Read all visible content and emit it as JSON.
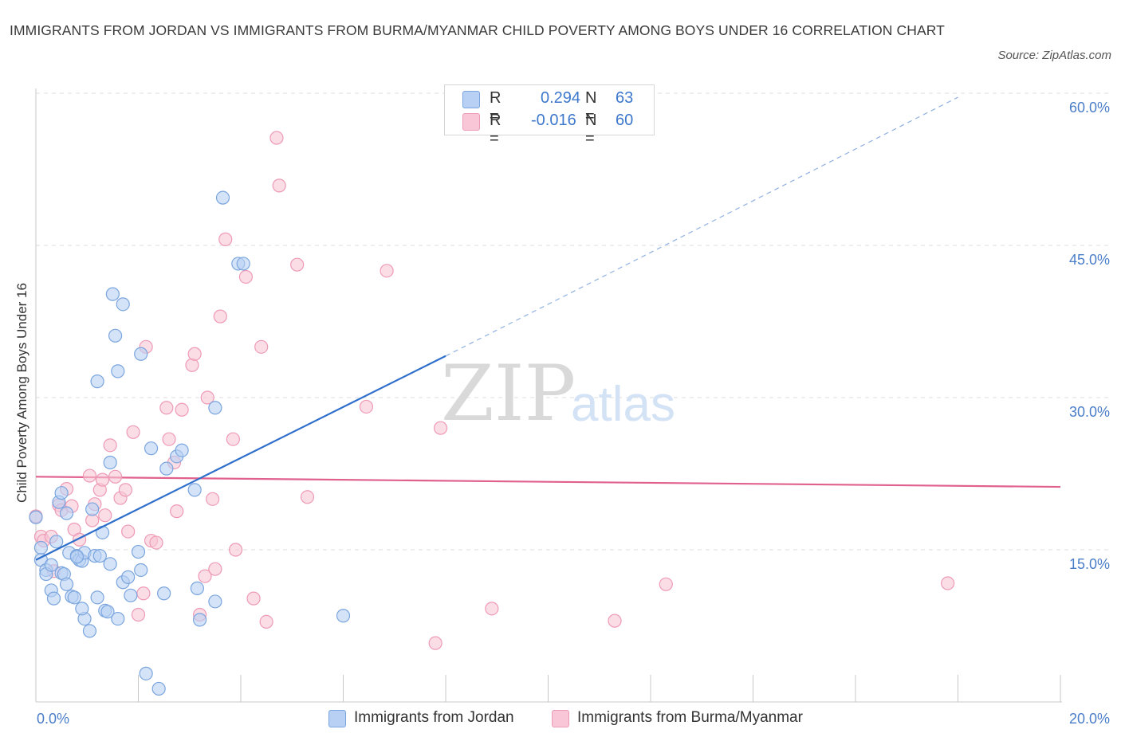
{
  "header": {
    "title": "IMMIGRANTS FROM JORDAN VS IMMIGRANTS FROM BURMA/MYANMAR CHILD POVERTY AMONG BOYS UNDER 16 CORRELATION CHART",
    "source": "Source: ZipAtlas.com"
  },
  "watermark": {
    "zip": "ZIP",
    "atlas": "atlas"
  },
  "colors": {
    "jordan_fill": "#b7d0f3",
    "jordan_stroke": "#7aa5de",
    "jordan_line": "#2f6fcc",
    "burma_fill": "#f8c6d6",
    "burma_stroke": "#ee9ab7",
    "burma_line": "#e0608e",
    "grid": "#dcdcdc",
    "tick_text": "#4a7ec9"
  },
  "legend": {
    "rows": [
      {
        "r_label": "R =",
        "r_value": "0.294",
        "n_label": "N =",
        "n_value": "63"
      },
      {
        "r_label": "R =",
        "r_value": "-0.016",
        "n_label": "N =",
        "n_value": "60"
      }
    ]
  },
  "bottom_legend": {
    "jordan": "Immigrants from Jordan",
    "burma": "Immigrants from Burma/Myanmar"
  },
  "chart_data": {
    "type": "scatter",
    "title": "IMMIGRANTS FROM JORDAN VS IMMIGRANTS FROM BURMA/MYANMAR CHILD POVERTY AMONG BOYS UNDER 16 CORRELATION CHART",
    "xlabel": "",
    "ylabel": "Child Poverty Among Boys Under 16",
    "xlim": [
      0,
      20
    ],
    "ylim": [
      0,
      60
    ],
    "x_tick_labels": [
      "0.0%",
      "20.0%"
    ],
    "y_ticks": [
      15,
      30,
      45,
      60
    ],
    "y_tick_labels": [
      "15.0%",
      "30.0%",
      "45.0%",
      "60.0%"
    ],
    "grid": true,
    "legend_position": "top-center",
    "series": [
      {
        "name": "Immigrants from Jordan",
        "points": [
          [
            0.0,
            18.2
          ],
          [
            0.1,
            15.2
          ],
          [
            0.1,
            14.0
          ],
          [
            0.2,
            13.0
          ],
          [
            0.2,
            12.6
          ],
          [
            0.3,
            13.5
          ],
          [
            0.3,
            11.0
          ],
          [
            0.35,
            10.2
          ],
          [
            0.4,
            15.8
          ],
          [
            0.45,
            19.7
          ],
          [
            0.5,
            20.6
          ],
          [
            0.5,
            12.7
          ],
          [
            0.55,
            12.6
          ],
          [
            0.6,
            18.6
          ],
          [
            0.6,
            11.6
          ],
          [
            0.65,
            14.7
          ],
          [
            0.7,
            10.4
          ],
          [
            0.75,
            10.3
          ],
          [
            0.8,
            14.4
          ],
          [
            0.85,
            14.0
          ],
          [
            0.9,
            13.9
          ],
          [
            0.95,
            14.7
          ],
          [
            0.95,
            8.2
          ],
          [
            1.05,
            7.0
          ],
          [
            1.1,
            19.0
          ],
          [
            1.15,
            14.4
          ],
          [
            1.2,
            10.3
          ],
          [
            1.3,
            16.7
          ],
          [
            1.35,
            9.0
          ],
          [
            1.4,
            8.9
          ],
          [
            1.45,
            13.6
          ],
          [
            1.45,
            23.6
          ],
          [
            1.5,
            40.2
          ],
          [
            1.55,
            36.1
          ],
          [
            1.6,
            32.6
          ],
          [
            1.7,
            39.2
          ],
          [
            1.6,
            8.2
          ],
          [
            1.7,
            11.8
          ],
          [
            1.8,
            12.3
          ],
          [
            1.85,
            10.5
          ],
          [
            2.0,
            14.8
          ],
          [
            2.05,
            34.3
          ],
          [
            2.05,
            13.0
          ],
          [
            2.15,
            2.8
          ],
          [
            2.25,
            25.0
          ],
          [
            2.4,
            1.3
          ],
          [
            2.5,
            10.7
          ],
          [
            2.55,
            23.0
          ],
          [
            2.75,
            24.2
          ],
          [
            2.85,
            24.8
          ],
          [
            3.1,
            20.9
          ],
          [
            3.15,
            11.2
          ],
          [
            3.2,
            8.1
          ],
          [
            3.5,
            9.9
          ],
          [
            3.5,
            29.0
          ],
          [
            3.65,
            49.7
          ],
          [
            3.95,
            43.2
          ],
          [
            4.05,
            43.2
          ],
          [
            6.0,
            8.5
          ],
          [
            1.2,
            31.6
          ],
          [
            0.8,
            14.3
          ],
          [
            1.25,
            14.4
          ],
          [
            0.9,
            9.2
          ]
        ]
      },
      {
        "name": "Immigrants from Burma/Myanmar",
        "points": [
          [
            0.0,
            18.3
          ],
          [
            0.1,
            16.3
          ],
          [
            0.15,
            15.9
          ],
          [
            0.3,
            16.3
          ],
          [
            0.35,
            12.9
          ],
          [
            0.45,
            19.4
          ],
          [
            0.5,
            18.9
          ],
          [
            0.6,
            21.0
          ],
          [
            0.7,
            19.3
          ],
          [
            0.75,
            17.0
          ],
          [
            0.85,
            16.0
          ],
          [
            1.05,
            22.3
          ],
          [
            1.1,
            17.9
          ],
          [
            1.15,
            19.5
          ],
          [
            1.25,
            20.9
          ],
          [
            1.3,
            21.9
          ],
          [
            1.35,
            18.4
          ],
          [
            1.45,
            25.3
          ],
          [
            1.55,
            22.2
          ],
          [
            1.65,
            20.1
          ],
          [
            1.75,
            20.9
          ],
          [
            1.8,
            16.8
          ],
          [
            1.9,
            26.6
          ],
          [
            2.0,
            8.6
          ],
          [
            2.1,
            10.7
          ],
          [
            2.15,
            35.0
          ],
          [
            2.25,
            15.9
          ],
          [
            2.35,
            15.7
          ],
          [
            2.55,
            29.0
          ],
          [
            2.6,
            25.9
          ],
          [
            2.7,
            23.6
          ],
          [
            2.75,
            18.8
          ],
          [
            2.85,
            28.8
          ],
          [
            3.05,
            33.2
          ],
          [
            3.1,
            34.3
          ],
          [
            3.2,
            8.6
          ],
          [
            3.3,
            12.4
          ],
          [
            3.35,
            30.0
          ],
          [
            3.45,
            20.0
          ],
          [
            3.5,
            13.1
          ],
          [
            3.6,
            38.0
          ],
          [
            3.7,
            45.6
          ],
          [
            3.85,
            25.9
          ],
          [
            3.9,
            15.0
          ],
          [
            4.1,
            41.9
          ],
          [
            4.25,
            10.2
          ],
          [
            4.4,
            35.0
          ],
          [
            4.5,
            7.9
          ],
          [
            4.7,
            55.6
          ],
          [
            4.75,
            50.9
          ],
          [
            5.1,
            43.1
          ],
          [
            5.3,
            20.2
          ],
          [
            6.45,
            29.1
          ],
          [
            6.85,
            42.5
          ],
          [
            7.8,
            5.8
          ],
          [
            7.9,
            27.0
          ],
          [
            8.9,
            9.2
          ],
          [
            11.3,
            8.0
          ],
          [
            12.3,
            11.6
          ],
          [
            17.8,
            11.7
          ]
        ]
      }
    ],
    "trend_lines": [
      {
        "name": "Immigrants from Jordan",
        "x": [
          0,
          8.0
        ],
        "y": [
          14.0,
          34.1
        ],
        "dashed_extension": {
          "x": [
            8.0,
            18.0
          ],
          "y": [
            34.1,
            59.6
          ]
        }
      },
      {
        "name": "Immigrants from Burma/Myanmar",
        "x": [
          0,
          20
        ],
        "y": [
          22.2,
          21.2
        ]
      }
    ]
  }
}
